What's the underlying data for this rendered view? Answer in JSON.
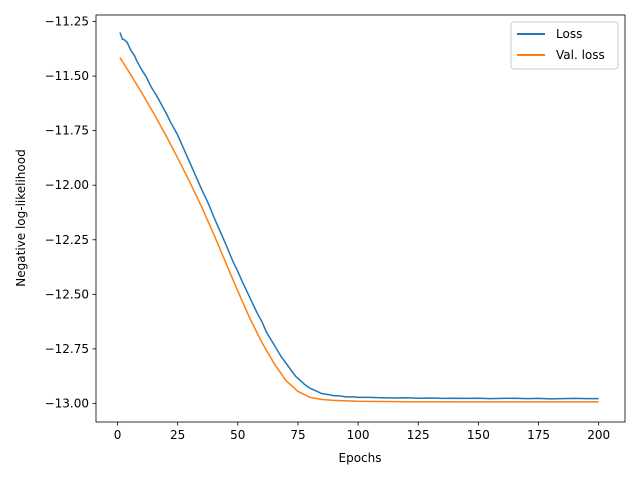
{
  "chart_data": {
    "type": "line",
    "title": "",
    "xlabel": "Epochs",
    "ylabel": "Negative log-likelihood",
    "xlim": [
      -8.95,
      210.95
    ],
    "ylim": [
      -13.085,
      -11.22
    ],
    "xticks": [
      0,
      25,
      50,
      75,
      100,
      125,
      150,
      175,
      200
    ],
    "yticks": [
      -13.0,
      -12.75,
      -12.5,
      -12.25,
      -12.0,
      -11.75,
      -11.5,
      -11.25
    ],
    "xtick_labels": [
      "0",
      "25",
      "50",
      "75",
      "100",
      "125",
      "150",
      "175",
      "200"
    ],
    "ytick_labels": [
      "−13.00",
      "−12.75",
      "−12.50",
      "−12.25",
      "−12.00",
      "−11.75",
      "−11.50",
      "−11.25"
    ],
    "grid": false,
    "legend_position": "top-right",
    "series": [
      {
        "name": "Loss",
        "color": "#1f77b4",
        "x": [
          1,
          2,
          3,
          4,
          5,
          6,
          7,
          8,
          10,
          12,
          14,
          16,
          18,
          20,
          22,
          25,
          28,
          30,
          32,
          35,
          38,
          40,
          42,
          45,
          48,
          50,
          52,
          55,
          58,
          60,
          62,
          65,
          68,
          70,
          72,
          74,
          76,
          78,
          80,
          82,
          85,
          88,
          90,
          92,
          95,
          98,
          100,
          105,
          110,
          115,
          120,
          125,
          130,
          135,
          140,
          145,
          150,
          155,
          160,
          165,
          170,
          175,
          180,
          185,
          190,
          195,
          200
        ],
        "y": [
          -11.3,
          -11.33,
          -11.335,
          -11.345,
          -11.37,
          -11.39,
          -11.405,
          -11.43,
          -11.47,
          -11.505,
          -11.55,
          -11.585,
          -11.625,
          -11.665,
          -11.71,
          -11.77,
          -11.845,
          -11.895,
          -11.945,
          -12.02,
          -12.09,
          -12.145,
          -12.195,
          -12.27,
          -12.35,
          -12.395,
          -12.445,
          -12.515,
          -12.585,
          -12.625,
          -12.675,
          -12.73,
          -12.785,
          -12.815,
          -12.845,
          -12.875,
          -12.895,
          -12.915,
          -12.93,
          -12.94,
          -12.955,
          -12.96,
          -12.965,
          -12.965,
          -12.97,
          -12.97,
          -12.972,
          -12.972,
          -12.974,
          -12.975,
          -12.974,
          -12.976,
          -12.975,
          -12.977,
          -12.976,
          -12.977,
          -12.976,
          -12.978,
          -12.977,
          -12.976,
          -12.978,
          -12.977,
          -12.979,
          -12.978,
          -12.977,
          -12.978,
          -12.978
        ]
      },
      {
        "name": "Val. loss",
        "color": "#ff7f0e",
        "x": [
          1,
          5,
          10,
          15,
          20,
          25,
          30,
          35,
          40,
          45,
          50,
          55,
          60,
          65,
          70,
          75,
          80,
          85,
          90,
          95,
          100,
          110,
          120,
          130,
          140,
          150,
          160,
          170,
          180,
          190,
          200
        ],
        "y": [
          -11.415,
          -11.485,
          -11.575,
          -11.67,
          -11.77,
          -11.875,
          -11.985,
          -12.1,
          -12.225,
          -12.355,
          -12.485,
          -12.61,
          -12.72,
          -12.815,
          -12.895,
          -12.945,
          -12.972,
          -12.982,
          -12.986,
          -12.988,
          -12.99,
          -12.991,
          -12.992,
          -12.992,
          -12.993,
          -12.993,
          -12.993,
          -12.993,
          -12.993,
          -12.993,
          -12.993
        ]
      }
    ]
  }
}
